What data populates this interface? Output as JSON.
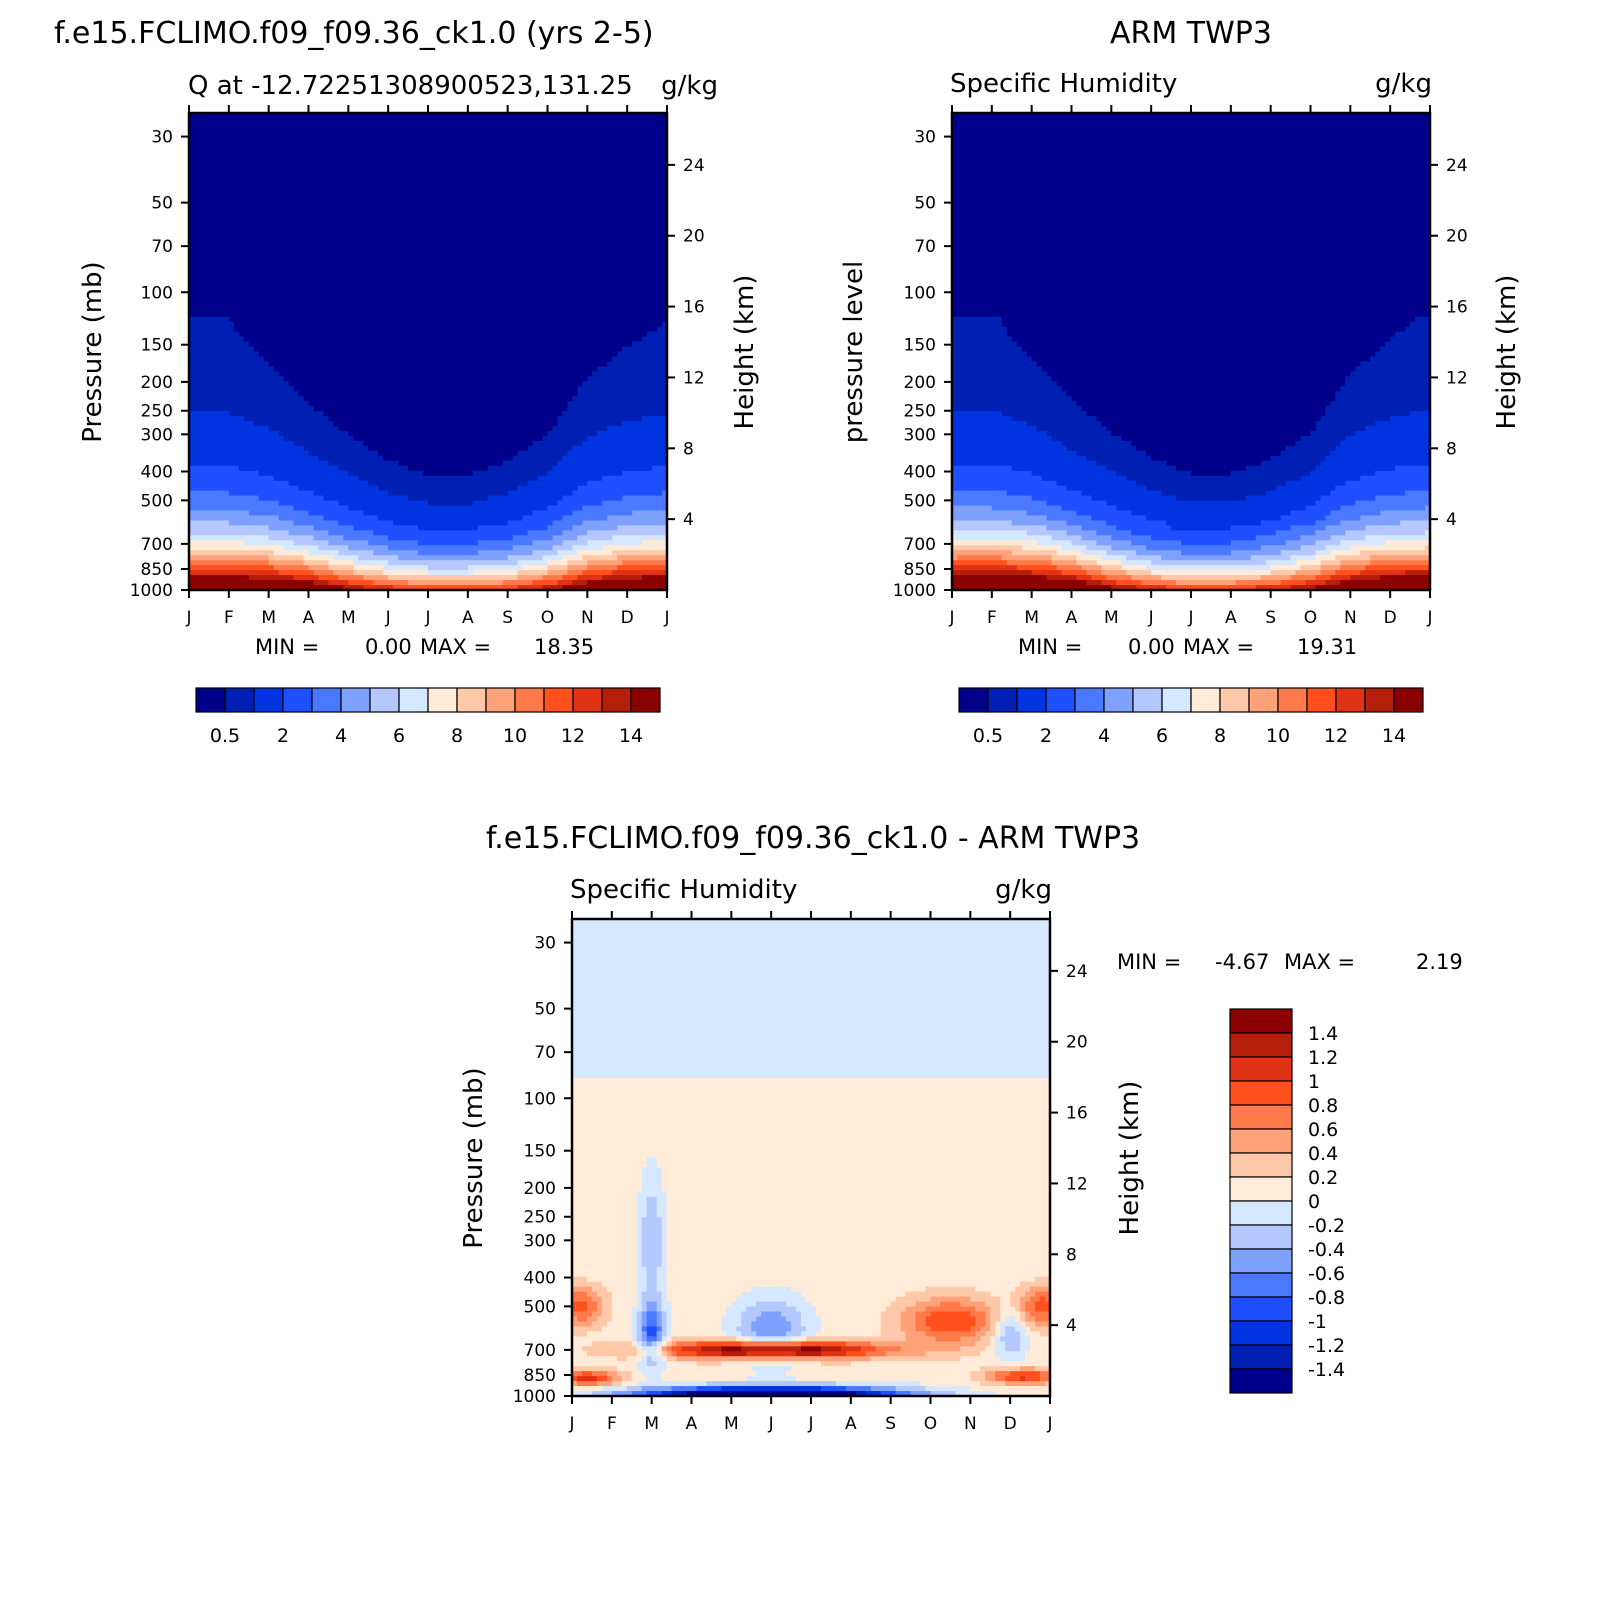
{
  "figure": {
    "top_left_title": "f.e15.FCLIMO.f09_f09.36_ck1.0 (yrs 2-5)",
    "top_right_title": "ARM TWP3",
    "bottom_title": "f.e15.FCLIMO.f09_f09.36_ck1.0 - ARM TWP3"
  },
  "chart_data": [
    {
      "type": "heatmap",
      "title": "f.e15.FCLIMO.f09_f09.36_ck1.0 (yrs 2-5)",
      "subtitle_left": "Q at -12.72251308900523,131.25",
      "subtitle_right": "g/kg",
      "ylabel": "Pressure (mb)",
      "y2label": "Height (km)",
      "x_ticks": [
        "J",
        "F",
        "M",
        "A",
        "M",
        "J",
        "J",
        "A",
        "S",
        "O",
        "N",
        "D",
        "J"
      ],
      "y_ticks": [
        30,
        50,
        70,
        100,
        150,
        200,
        250,
        300,
        400,
        500,
        700,
        850,
        1000
      ],
      "y2_ticks": [
        4,
        8,
        12,
        16,
        20,
        24
      ],
      "min_label": "MIN =",
      "min_value": "0.00",
      "max_label": "MAX =",
      "max_value": "18.35",
      "colorbar_labels": [
        "0.5",
        "2",
        "4",
        "6",
        "8",
        "10",
        "12",
        "14"
      ],
      "colorbar_colors": [
        "#00008b",
        "#0020b4",
        "#0034e0",
        "#1e50ff",
        "#4a78ff",
        "#7ea0ff",
        "#b4c8ff",
        "#d6e8ff",
        "#ffebd7",
        "#ffc8a8",
        "#ffa27a",
        "#ff7a4a",
        "#ff501e",
        "#e03214",
        "#b41e0a",
        "#8b0000"
      ],
      "months_x": [
        0,
        1,
        2,
        3,
        4,
        5,
        6,
        7,
        8,
        9,
        10,
        11,
        12
      ],
      "q_at_950mb": [
        16,
        16,
        15.5,
        14.5,
        12,
        10.5,
        9.5,
        9.5,
        10,
        11.5,
        14,
        15.5,
        16
      ],
      "q_at_300mb": [
        0.5,
        0.5,
        0.4,
        0.25,
        0.15,
        0.08,
        0.05,
        0.05,
        0.08,
        0.15,
        0.35,
        0.45,
        0.5
      ]
    },
    {
      "type": "heatmap",
      "title": "ARM TWP3",
      "subtitle_left": "Specific Humidity",
      "subtitle_right": "g/kg",
      "ylabel": "pressure level",
      "y2label": "Height (km)",
      "x_ticks": [
        "J",
        "F",
        "M",
        "A",
        "M",
        "J",
        "J",
        "A",
        "S",
        "O",
        "N",
        "D",
        "J"
      ],
      "y_ticks": [
        30,
        50,
        70,
        100,
        150,
        200,
        250,
        300,
        400,
        500,
        700,
        850,
        1000
      ],
      "y2_ticks": [
        4,
        8,
        12,
        16,
        20,
        24
      ],
      "min_label": "MIN =",
      "min_value": "0.00",
      "max_label": "MAX =",
      "max_value": "19.31",
      "colorbar_labels": [
        "0.5",
        "2",
        "4",
        "6",
        "8",
        "10",
        "12",
        "14"
      ],
      "colorbar_colors": [
        "#00008b",
        "#0020b4",
        "#0034e0",
        "#1e50ff",
        "#4a78ff",
        "#7ea0ff",
        "#b4c8ff",
        "#d6e8ff",
        "#ffebd7",
        "#ffc8a8",
        "#ffa27a",
        "#ff7a4a",
        "#ff501e",
        "#e03214",
        "#b41e0a",
        "#8b0000"
      ]
    },
    {
      "type": "heatmap",
      "title": "f.e15.FCLIMO.f09_f09.36_ck1.0 - ARM TWP3",
      "subtitle_left": "Specific Humidity",
      "subtitle_right": "g/kg",
      "ylabel": "Pressure (mb)",
      "y2label": "Height (km)",
      "x_ticks": [
        "J",
        "F",
        "M",
        "A",
        "M",
        "J",
        "J",
        "A",
        "S",
        "O",
        "N",
        "D",
        "J"
      ],
      "y_ticks": [
        30,
        50,
        70,
        100,
        150,
        200,
        250,
        300,
        400,
        500,
        700,
        850,
        1000
      ],
      "y2_ticks": [
        4,
        8,
        12,
        16,
        20,
        24
      ],
      "min_label": "MIN =",
      "min_value": "-4.67",
      "max_label": "MAX =",
      "max_value": "2.19",
      "colorbar_labels": [
        "1.4",
        "1.2",
        "1",
        "0.8",
        "0.6",
        "0.4",
        "0.2",
        "0",
        "-0.2",
        "-0.4",
        "-0.6",
        "-0.8",
        "-1",
        "-1.2",
        "-1.4"
      ],
      "colorbar_colors": [
        "#8b0000",
        "#b41e0a",
        "#e03214",
        "#ff501e",
        "#ff7a4a",
        "#ffa27a",
        "#ffc8a8",
        "#ffebd7",
        "#d6e8ff",
        "#b4c8ff",
        "#7ea0ff",
        "#4a78ff",
        "#1e50ff",
        "#0034e0",
        "#0020b4",
        "#00008b"
      ]
    }
  ]
}
